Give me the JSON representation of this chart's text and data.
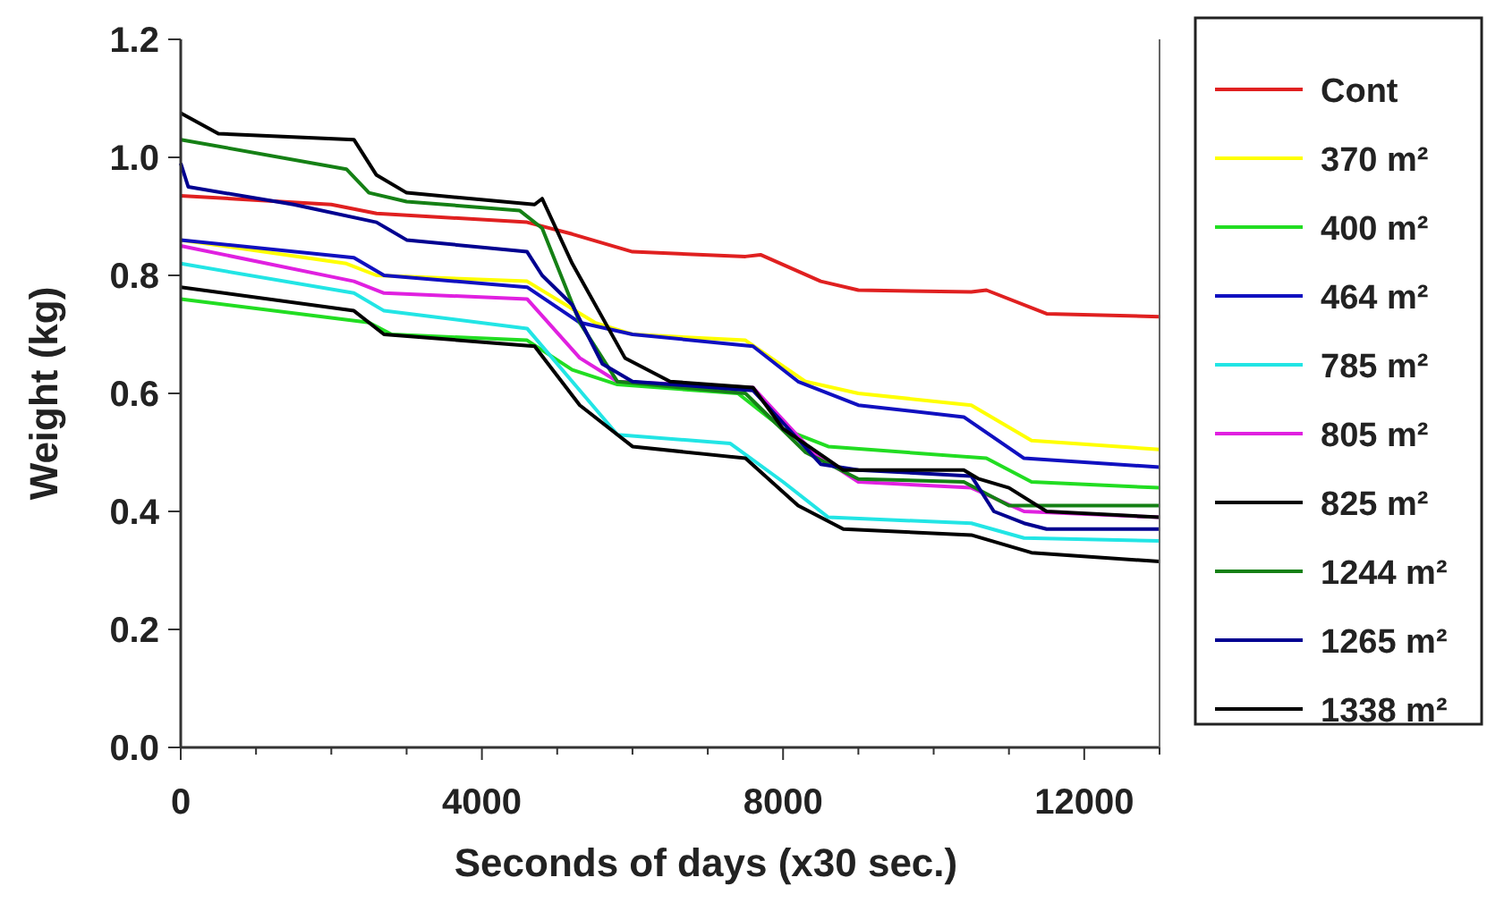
{
  "chart_data": {
    "type": "line",
    "xlabel": "Seconds of days (x30 sec.)",
    "ylabel": "Weight (kg)",
    "xlim": [
      0,
      13000
    ],
    "ylim": [
      0,
      1.2
    ],
    "xticks": [
      0,
      {
        "value": 1000,
        "label": null
      },
      {
        "value": 2000,
        "label": null
      },
      {
        "value": 3000,
        "label": null
      },
      4000,
      {
        "value": 5000,
        "label": null
      },
      {
        "value": 6000,
        "label": null
      },
      {
        "value": 7000,
        "label": null
      },
      8000,
      {
        "value": 9000,
        "label": null
      },
      {
        "value": 10000,
        "label": null
      },
      {
        "value": 11000,
        "label": null
      },
      12000,
      {
        "value": 13000,
        "label": null
      }
    ],
    "yticks": [
      {
        "value": 0,
        "label": "0.0"
      },
      {
        "value": 0.2,
        "label": "0.2"
      },
      {
        "value": 0.4,
        "label": "0.4"
      },
      {
        "value": 0.6,
        "label": "0.6"
      },
      {
        "value": 0.8,
        "label": "0.8"
      },
      {
        "value": 1,
        "label": "1.0"
      },
      {
        "value": 1.2,
        "label": "1.2"
      }
    ],
    "grid": false,
    "legend": "right",
    "marker": "none",
    "line_style": "solid",
    "series": [
      {
        "name": "Cont",
        "color": "#e02020",
        "x": [
          0,
          2000,
          2600,
          4600,
          5200,
          6000,
          7500,
          7700,
          8500,
          9000,
          10500,
          10700,
          11500,
          13000
        ],
        "values": [
          0.935,
          0.92,
          0.905,
          0.89,
          0.87,
          0.84,
          0.832,
          0.835,
          0.79,
          0.775,
          0.772,
          0.775,
          0.735,
          0.73
        ]
      },
      {
        "name": "370 m²",
        "color": "#ffff00",
        "x": [
          0,
          2200,
          2600,
          4600,
          5500,
          6000,
          7500,
          8300,
          9000,
          10500,
          11300,
          13000
        ],
        "values": [
          0.86,
          0.82,
          0.8,
          0.79,
          0.72,
          0.7,
          0.69,
          0.62,
          0.6,
          0.58,
          0.52,
          0.505
        ]
      },
      {
        "name": "400 m²",
        "color": "#22dd22",
        "x": [
          0,
          2500,
          2800,
          4600,
          5200,
          5800,
          7400,
          8000,
          8600,
          10700,
          11300,
          13000
        ],
        "values": [
          0.76,
          0.72,
          0.7,
          0.69,
          0.64,
          0.615,
          0.6,
          0.54,
          0.51,
          0.49,
          0.45,
          0.44
        ]
      },
      {
        "name": "464 m²",
        "color": "#1010c0",
        "x": [
          0,
          2300,
          2700,
          4600,
          5300,
          6000,
          7600,
          8200,
          9000,
          10400,
          11200,
          13000
        ],
        "values": [
          0.86,
          0.83,
          0.8,
          0.78,
          0.72,
          0.7,
          0.68,
          0.62,
          0.58,
          0.56,
          0.49,
          0.475
        ]
      },
      {
        "name": "785 m²",
        "color": "#22e5e5",
        "x": [
          0,
          2300,
          2700,
          4600,
          5200,
          5800,
          7300,
          8000,
          8600,
          10500,
          11200,
          13000
        ],
        "values": [
          0.82,
          0.77,
          0.74,
          0.71,
          0.62,
          0.53,
          0.515,
          0.45,
          0.39,
          0.38,
          0.355,
          0.35
        ]
      },
      {
        "name": "805 m²",
        "color": "#e020e0",
        "x": [
          0,
          2300,
          2700,
          4600,
          5300,
          5800,
          7600,
          8400,
          9000,
          10500,
          11200,
          13000
        ],
        "values": [
          0.85,
          0.79,
          0.77,
          0.76,
          0.66,
          0.62,
          0.61,
          0.5,
          0.45,
          0.44,
          0.4,
          0.39
        ]
      },
      {
        "name": "825 m²",
        "color": "#000000",
        "x": [
          0,
          2300,
          2700,
          4700,
          5300,
          6000,
          7500,
          8200,
          8800,
          10500,
          11300,
          13000
        ],
        "values": [
          0.78,
          0.74,
          0.7,
          0.68,
          0.58,
          0.51,
          0.49,
          0.41,
          0.37,
          0.36,
          0.33,
          0.315
        ]
      },
      {
        "name": "1244 m²",
        "color": "#158015",
        "x": [
          0,
          2200,
          2500,
          3000,
          4500,
          4800,
          5300,
          5800,
          7500,
          8300,
          9000,
          10400,
          11000,
          13000
        ],
        "values": [
          1.03,
          0.98,
          0.94,
          0.925,
          0.91,
          0.88,
          0.72,
          0.62,
          0.6,
          0.5,
          0.455,
          0.45,
          0.41,
          0.41
        ]
      },
      {
        "name": "1265 m²",
        "color": "#000090",
        "x": [
          0,
          100,
          1500,
          2600,
          3000,
          4600,
          4800,
          5200,
          5600,
          6000,
          7600,
          8000,
          8500,
          9000,
          10500,
          10800,
          11200,
          11500,
          13000
        ],
        "values": [
          0.99,
          0.95,
          0.92,
          0.89,
          0.86,
          0.84,
          0.8,
          0.75,
          0.65,
          0.62,
          0.605,
          0.55,
          0.48,
          0.47,
          0.46,
          0.4,
          0.38,
          0.37,
          0.37
        ]
      },
      {
        "name": "1338 m²",
        "color": "#000000",
        "x": [
          0,
          500,
          2300,
          2600,
          3000,
          4700,
          4800,
          5200,
          5900,
          6500,
          7600,
          8000,
          8800,
          10400,
          10600,
          11000,
          11500,
          13000
        ],
        "values": [
          1.075,
          1.04,
          1.03,
          0.97,
          0.94,
          0.92,
          0.93,
          0.82,
          0.66,
          0.62,
          0.61,
          0.54,
          0.47,
          0.47,
          0.455,
          0.44,
          0.4,
          0.39
        ]
      }
    ]
  }
}
